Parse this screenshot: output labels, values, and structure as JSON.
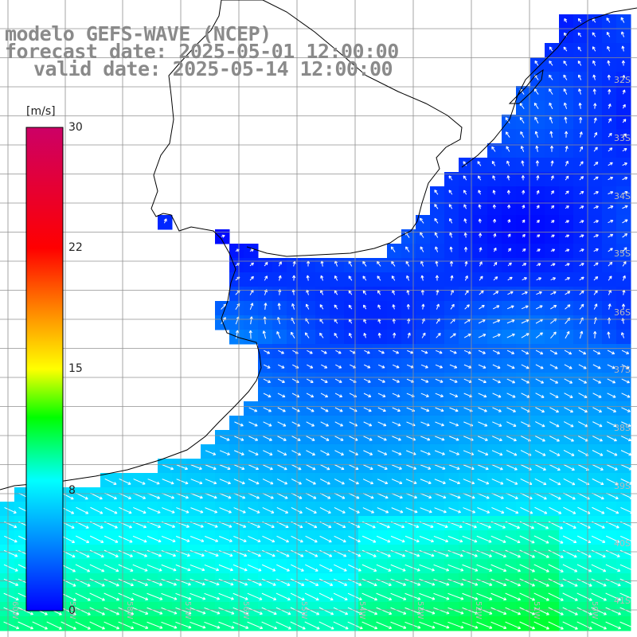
{
  "titles": {
    "model": "modelo GEFS-WAVE (NCEP)",
    "forecast": "forecast date: 2025-05-01 12:00:00",
    "valid": "valid date: 2025-05-14 12:00:00"
  },
  "colorbar": {
    "unit": "[m/s]",
    "ticks": [
      {
        "label": "30",
        "value": 30
      },
      {
        "label": "22",
        "value": 22
      },
      {
        "label": "15",
        "value": 15
      },
      {
        "label": "8",
        "value": 8
      },
      {
        "label": "0",
        "value": 0
      }
    ],
    "colors": [
      "#0000ff",
      "#0088ff",
      "#00ffff",
      "#00ff00",
      "#ffff00",
      "#ff8800",
      "#ff0000",
      "#cc0066"
    ]
  },
  "latitude_labels": [
    "32S",
    "33S",
    "34S",
    "35S",
    "36S",
    "37S",
    "38S",
    "39S",
    "40S",
    "41S"
  ],
  "longitude_labels": [
    "60W",
    "59W",
    "58W",
    "57W",
    "56W",
    "55W",
    "54W",
    "53W",
    "52W",
    "51W",
    "50W"
  ],
  "colors": {
    "land": "#ffffff",
    "coast": "#000000",
    "grid": "#909090",
    "title": "#8a8a8a",
    "arrow": "#ffffff"
  }
}
